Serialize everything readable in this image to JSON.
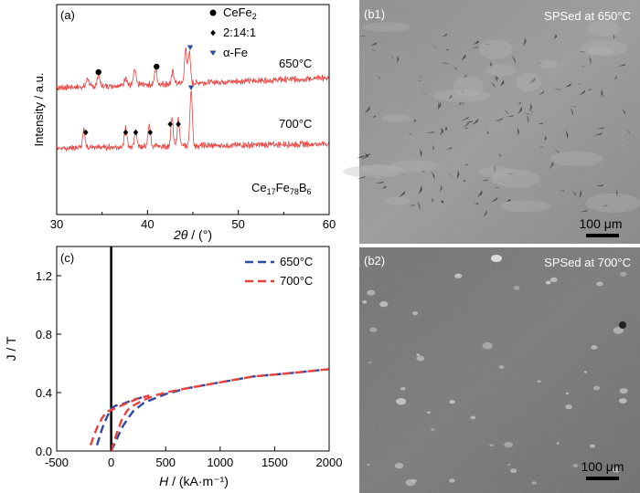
{
  "chart_data": [
    {
      "type": "line",
      "panel_label": "(a)",
      "xlabel_symbol": "2θ",
      "xlabel_unit": " / (°)",
      "ylabel": "Intensity / a.u.",
      "xlim": [
        30,
        60
      ],
      "xticks": [
        "30",
        "40",
        "50",
        "60"
      ],
      "legend": [
        {
          "marker": "circle",
          "label": "CeFe",
          "sub": "2"
        },
        {
          "marker": "diamond",
          "label": "2:14:1",
          "sub": ""
        },
        {
          "marker": "triangle",
          "label": "α-Fe",
          "sub": ""
        }
      ],
      "composition": {
        "base": "Ce",
        "s1": "17",
        "el2": "Fe",
        "s2": "78",
        "el3": "B",
        "s3": "6"
      },
      "series": [
        {
          "name": "650°C",
          "color": "#e8423f",
          "peaks": [
            [
              33.4,
              0.25
            ],
            [
              34.6,
              0.35
            ],
            [
              37.6,
              0.25
            ],
            [
              38.6,
              0.45
            ],
            [
              40.9,
              0.45
            ],
            [
              42.8,
              0.35
            ],
            [
              44.2,
              1.0
            ],
            [
              44.6,
              0.9
            ]
          ]
        },
        {
          "name": "700°C",
          "color": "#e8423f",
          "peaks": [
            [
              33.0,
              0.3
            ],
            [
              37.6,
              0.35
            ],
            [
              38.7,
              0.3
            ],
            [
              40.2,
              0.4
            ],
            [
              42.7,
              0.5
            ],
            [
              43.4,
              0.5
            ],
            [
              44.8,
              1.0
            ]
          ]
        }
      ],
      "markers": [
        {
          "series": 0,
          "type": "circle",
          "x": 34.6
        },
        {
          "series": 0,
          "type": "circle",
          "x": 41.0
        },
        {
          "series": 0,
          "type": "triangle",
          "x": 44.7
        },
        {
          "series": 1,
          "type": "diamond",
          "x": 33.2
        },
        {
          "series": 1,
          "type": "diamond",
          "x": 37.6
        },
        {
          "series": 1,
          "type": "diamond",
          "x": 38.7
        },
        {
          "series": 1,
          "type": "diamond",
          "x": 40.3
        },
        {
          "series": 1,
          "type": "diamond",
          "x": 42.5
        },
        {
          "series": 1,
          "type": "diamond",
          "x": 43.4
        },
        {
          "series": 1,
          "type": "triangle",
          "x": 44.8
        }
      ]
    },
    {
      "type": "line",
      "panel_label": "(c)",
      "xlabel_symbol": "H",
      "xlabel_unit": " / (kA·m⁻¹)",
      "ylabel": "J / T",
      "xlim": [
        -500,
        2000
      ],
      "ylim": [
        0,
        1.4
      ],
      "xticks": [
        -500,
        0,
        500,
        1000,
        1500,
        2000
      ],
      "yticks": [
        0.0,
        0.4,
        0.8,
        1.2
      ],
      "series": [
        {
          "name": "650°C",
          "color": "#2e4a9e",
          "x": [
            0,
            50,
            100,
            150,
            200,
            250,
            300,
            400,
            500,
            700,
            1000,
            1300,
            1600,
            2000
          ],
          "y": [
            0.0,
            0.08,
            0.16,
            0.22,
            0.27,
            0.3,
            0.33,
            0.36,
            0.39,
            0.43,
            0.47,
            0.51,
            0.53,
            0.56
          ]
        },
        {
          "name": "650°C-inner",
          "color": "#2e4a9e",
          "x": [
            -130,
            -80,
            -40,
            0,
            40,
            100,
            200,
            300
          ],
          "y": [
            0.04,
            0.16,
            0.23,
            0.29,
            0.31,
            0.32,
            0.35,
            0.37
          ]
        },
        {
          "name": "700°C",
          "color": "#e8423f",
          "x": [
            0,
            50,
            100,
            150,
            200,
            300,
            400,
            500,
            700,
            1000,
            1300,
            1600,
            2000
          ],
          "y": [
            0.0,
            0.12,
            0.22,
            0.28,
            0.31,
            0.35,
            0.38,
            0.4,
            0.43,
            0.47,
            0.51,
            0.53,
            0.56
          ]
        },
        {
          "name": "700°C-inner",
          "color": "#e8423f",
          "x": [
            -190,
            -130,
            -80,
            -40,
            0,
            60,
            150,
            250,
            350
          ],
          "y": [
            0.04,
            0.16,
            0.23,
            0.27,
            0.28,
            0.3,
            0.33,
            0.36,
            0.38
          ]
        }
      ],
      "legend": [
        {
          "label": "650°C",
          "color": "#2e4a9e"
        },
        {
          "label": "700°C",
          "color": "#e8423f"
        }
      ]
    }
  ],
  "sem": {
    "b1": {
      "label": "(b1)",
      "caption": "SPSed at 650°C",
      "scale": "100 μm"
    },
    "b2": {
      "label": "(b2)",
      "caption": "SPSed at 700°C",
      "scale": "100 μm"
    }
  }
}
